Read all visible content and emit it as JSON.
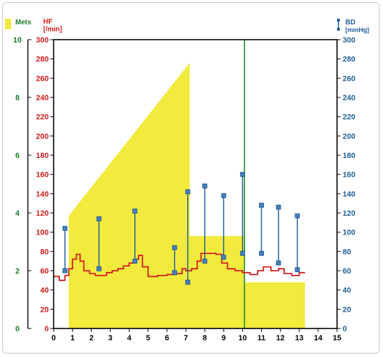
{
  "chart_data": {
    "type": "line",
    "colors": {
      "mets": "#f2ea3c",
      "hf": "#d01c1c",
      "bd": "#1f5e9a",
      "marker_line": "#1a8a2a",
      "mets_axis": "#1a7a2a"
    },
    "legend": {
      "mets_label": "Mets",
      "hf_label": "HF",
      "hf_unit": "[/min]",
      "bd_label": "BD",
      "bd_unit": "[mmHg]"
    },
    "x_axis": {
      "range": [
        0,
        15
      ],
      "ticks": [
        "0",
        "1",
        "2",
        "3",
        "4",
        "5",
        "6",
        "7",
        "8",
        "9",
        "10",
        "11",
        "12",
        "13",
        "14",
        "15"
      ]
    },
    "mets_axis": {
      "range": [
        0,
        10
      ],
      "ticks": [
        "0",
        "2",
        "4",
        "6",
        "8",
        "10"
      ]
    },
    "hf_axis": {
      "range": [
        0,
        300
      ],
      "ticks": [
        "0",
        "20",
        "40",
        "60",
        "80",
        "100",
        "120",
        "140",
        "160",
        "180",
        "200",
        "220",
        "240",
        "260",
        "280",
        "300"
      ]
    },
    "bd_axis": {
      "range": [
        0,
        300
      ],
      "ticks": [
        "0",
        "20",
        "40",
        "60",
        "80",
        "100",
        "120",
        "140",
        "160",
        "180",
        "200",
        "220",
        "240",
        "260",
        "280",
        "300"
      ]
    },
    "mets_series": [
      [
        0.8,
        0
      ],
      [
        0.8,
        3.9
      ],
      [
        7.2,
        9.2
      ],
      [
        7.2,
        3.2
      ],
      [
        10.1,
        3.2
      ],
      [
        10.1,
        1.6
      ],
      [
        13.3,
        1.6
      ],
      [
        13.3,
        0
      ]
    ],
    "hf_series": [
      [
        0,
        54
      ],
      [
        0.3,
        50
      ],
      [
        0.6,
        55
      ],
      [
        0.8,
        62
      ],
      [
        1.0,
        72
      ],
      [
        1.2,
        77
      ],
      [
        1.4,
        70
      ],
      [
        1.6,
        60
      ],
      [
        1.9,
        57
      ],
      [
        2.2,
        55
      ],
      [
        2.5,
        55
      ],
      [
        2.8,
        58
      ],
      [
        3.1,
        60
      ],
      [
        3.4,
        62
      ],
      [
        3.7,
        65
      ],
      [
        4.0,
        68
      ],
      [
        4.3,
        72
      ],
      [
        4.5,
        76
      ],
      [
        4.7,
        64
      ],
      [
        5.0,
        54
      ],
      [
        5.5,
        55
      ],
      [
        6.0,
        56
      ],
      [
        6.5,
        57
      ],
      [
        6.8,
        62
      ],
      [
        7.0,
        60
      ],
      [
        7.3,
        62
      ],
      [
        7.6,
        70
      ],
      [
        7.8,
        78
      ],
      [
        8.2,
        78
      ],
      [
        8.6,
        77
      ],
      [
        8.9,
        68
      ],
      [
        9.2,
        62
      ],
      [
        9.6,
        60
      ],
      [
        10.0,
        58
      ],
      [
        10.4,
        56
      ],
      [
        10.8,
        60
      ],
      [
        11.1,
        64
      ],
      [
        11.5,
        60
      ],
      [
        11.9,
        62
      ],
      [
        12.2,
        57
      ],
      [
        12.6,
        55
      ],
      [
        13.0,
        58
      ],
      [
        13.3,
        58
      ]
    ],
    "bd_series": [
      {
        "x": 0.6,
        "sys": 104,
        "dia": 60
      },
      {
        "x": 2.4,
        "sys": 114,
        "dia": 62
      },
      {
        "x": 4.3,
        "sys": 122,
        "dia": 70
      },
      {
        "x": 6.4,
        "sys": 84,
        "dia": 58
      },
      {
        "x": 7.1,
        "sys": 142,
        "dia": 48
      },
      {
        "x": 8.0,
        "sys": 148,
        "dia": 70
      },
      {
        "x": 9.0,
        "sys": 138,
        "dia": 74
      },
      {
        "x": 10.0,
        "sys": 160,
        "dia": 78
      },
      {
        "x": 11.0,
        "sys": 128,
        "dia": 78
      },
      {
        "x": 11.9,
        "sys": 126,
        "dia": 68
      },
      {
        "x": 12.9,
        "sys": 117,
        "dia": 61
      }
    ],
    "marker_x": 10.1,
    "grid": false
  }
}
